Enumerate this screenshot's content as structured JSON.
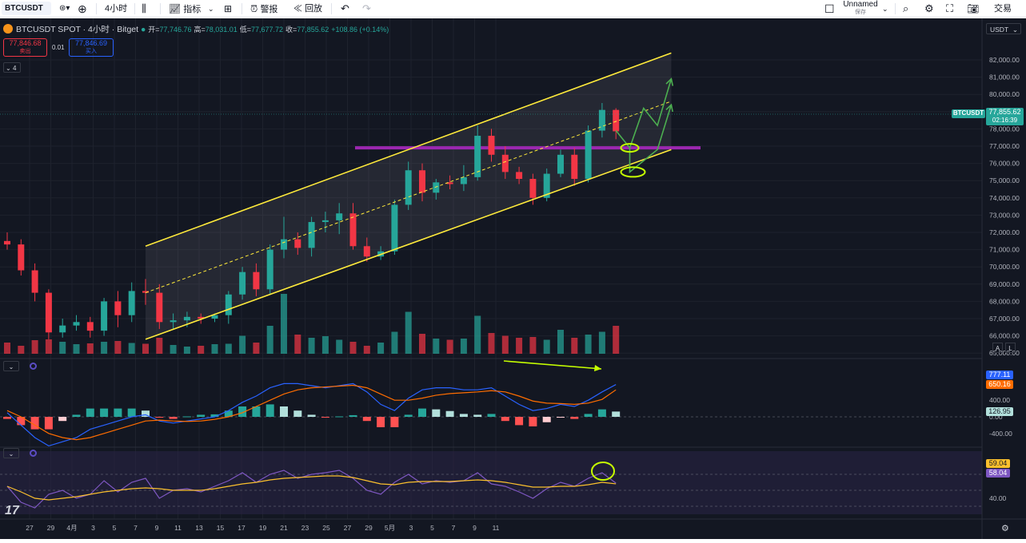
{
  "toolbar": {
    "symbol": "BTCUSDT",
    "interval": "4小时",
    "indicators_label": "指标",
    "alert_label": "警报",
    "replay_label": "回放",
    "layout_name": "Unnamed",
    "save_label": "保存",
    "trade_label": "交易"
  },
  "legend": {
    "title": "BTCUSDT SPOT · 4小时 · Bitget",
    "open_label": "开=",
    "open": "77,746.76",
    "high_label": "高=",
    "high": "78,031.01",
    "low_label": "低=",
    "low": "77,677.72",
    "close_label": "收=",
    "close": "77,855.62",
    "change": "+108.86 (+0.14%)",
    "sell_price": "77,846.68",
    "sell_label": "卖出",
    "spread": "0.01",
    "buy_price": "77,846.69",
    "buy_label": "买入",
    "collapse_count": "4"
  },
  "currency": "USDT",
  "last_price": {
    "symbol": "BTCUSDT",
    "price": "77,855.62",
    "countdown": "02:16:39"
  },
  "macd_values": [
    "777.11",
    "650.16",
    "126.95"
  ],
  "rsi_values": [
    "59.04",
    "58.04"
  ],
  "chart_data": [
    {
      "type": "candlestick",
      "title": "BTCUSDT SPOT · 4小时 · Bitget",
      "ylim": [
        64500,
        82500
      ],
      "y_ticks": [
        "82,000.00",
        "81,000.00",
        "80,000.00",
        "79,000.00",
        "78,000.00",
        "77,000.00",
        "76,000.00",
        "75,000.00",
        "74,000.00",
        "73,000.00",
        "72,000.00",
        "71,000.00",
        "70,000.00",
        "69,000.00",
        "68,000.00",
        "67,000.00",
        "66,000.00",
        "65,000.00"
      ],
      "x_tick_labels": [
        "27",
        "29",
        "4月",
        "3",
        "5",
        "7",
        "9",
        "11",
        "13",
        "15",
        "17",
        "19",
        "21",
        "23",
        "25",
        "27",
        "29",
        "5月",
        "3",
        "5",
        "7",
        "9",
        "11"
      ],
      "candles": [
        {
          "x": "03-26",
          "o": 71500,
          "h": 72000,
          "l": 71000,
          "c": 71300
        },
        {
          "x": "03-27",
          "o": 71300,
          "h": 71600,
          "l": 69500,
          "c": 69800
        },
        {
          "x": "03-28",
          "o": 69800,
          "h": 70200,
          "l": 68000,
          "c": 68500
        },
        {
          "x": "03-29",
          "o": 68500,
          "h": 68700,
          "l": 65800,
          "c": 66200
        },
        {
          "x": "03-30",
          "o": 66200,
          "h": 67000,
          "l": 65900,
          "c": 66600
        },
        {
          "x": "03-31",
          "o": 66600,
          "h": 67200,
          "l": 66300,
          "c": 66800
        },
        {
          "x": "04-01",
          "o": 66800,
          "h": 67100,
          "l": 65900,
          "c": 66300
        },
        {
          "x": "04-02",
          "o": 66300,
          "h": 68200,
          "l": 66000,
          "c": 68000
        },
        {
          "x": "04-03",
          "o": 68000,
          "h": 68600,
          "l": 66500,
          "c": 67200
        },
        {
          "x": "04-04",
          "o": 67200,
          "h": 69100,
          "l": 66800,
          "c": 68600
        },
        {
          "x": "04-05",
          "o": 68600,
          "h": 69300,
          "l": 67800,
          "c": 68500
        },
        {
          "x": "04-06",
          "o": 68500,
          "h": 69000,
          "l": 66400,
          "c": 66800
        },
        {
          "x": "04-07",
          "o": 66800,
          "h": 67300,
          "l": 66400,
          "c": 66900
        },
        {
          "x": "04-08",
          "o": 66900,
          "h": 67400,
          "l": 66500,
          "c": 67100
        },
        {
          "x": "04-09",
          "o": 67100,
          "h": 67300,
          "l": 66700,
          "c": 67000
        },
        {
          "x": "04-10",
          "o": 67000,
          "h": 67300,
          "l": 66800,
          "c": 67200
        },
        {
          "x": "04-11",
          "o": 67200,
          "h": 68600,
          "l": 66700,
          "c": 68400
        },
        {
          "x": "04-12",
          "o": 68400,
          "h": 70000,
          "l": 68100,
          "c": 69700
        },
        {
          "x": "04-13",
          "o": 69700,
          "h": 70200,
          "l": 68300,
          "c": 68700
        },
        {
          "x": "04-14",
          "o": 68700,
          "h": 71300,
          "l": 68400,
          "c": 71000
        },
        {
          "x": "04-15",
          "o": 71000,
          "h": 72900,
          "l": 70500,
          "c": 71600
        },
        {
          "x": "04-16",
          "o": 71600,
          "h": 72000,
          "l": 70700,
          "c": 71100
        },
        {
          "x": "04-17",
          "o": 71100,
          "h": 72900,
          "l": 70600,
          "c": 72600
        },
        {
          "x": "04-18",
          "o": 72600,
          "h": 73200,
          "l": 72000,
          "c": 72700
        },
        {
          "x": "04-19",
          "o": 72700,
          "h": 73700,
          "l": 71900,
          "c": 73100
        },
        {
          "x": "04-20",
          "o": 73100,
          "h": 73700,
          "l": 71000,
          "c": 71200
        },
        {
          "x": "04-21",
          "o": 71200,
          "h": 71700,
          "l": 70300,
          "c": 70600
        },
        {
          "x": "04-22",
          "o": 70600,
          "h": 71200,
          "l": 70400,
          "c": 70900
        },
        {
          "x": "04-23",
          "o": 70900,
          "h": 73900,
          "l": 70700,
          "c": 73600
        },
        {
          "x": "04-24",
          "o": 73600,
          "h": 76100,
          "l": 73300,
          "c": 75600
        },
        {
          "x": "04-25",
          "o": 75600,
          "h": 76000,
          "l": 73800,
          "c": 74300
        },
        {
          "x": "04-26",
          "o": 74300,
          "h": 75100,
          "l": 73900,
          "c": 74900
        },
        {
          "x": "04-27",
          "o": 74900,
          "h": 75300,
          "l": 74500,
          "c": 74800
        },
        {
          "x": "04-28",
          "o": 74800,
          "h": 75900,
          "l": 74400,
          "c": 75200
        },
        {
          "x": "04-29",
          "o": 75200,
          "h": 78200,
          "l": 75000,
          "c": 77600
        },
        {
          "x": "04-30",
          "o": 77600,
          "h": 78000,
          "l": 76100,
          "c": 76500
        },
        {
          "x": "05-01",
          "o": 76500,
          "h": 77000,
          "l": 75100,
          "c": 75500
        },
        {
          "x": "05-02",
          "o": 75500,
          "h": 75800,
          "l": 74800,
          "c": 75100
        },
        {
          "x": "05-03",
          "o": 75100,
          "h": 75400,
          "l": 73600,
          "c": 74000
        },
        {
          "x": "05-04",
          "o": 74000,
          "h": 75700,
          "l": 73800,
          "c": 75400
        },
        {
          "x": "05-05",
          "o": 75400,
          "h": 76800,
          "l": 75200,
          "c": 76500
        },
        {
          "x": "05-06",
          "o": 76500,
          "h": 76900,
          "l": 74700,
          "c": 75100
        },
        {
          "x": "05-07",
          "o": 75100,
          "h": 78200,
          "l": 74900,
          "c": 77900
        },
        {
          "x": "05-08",
          "o": 77900,
          "h": 79500,
          "l": 77500,
          "c": 79100
        },
        {
          "x": "05-09",
          "o": 79100,
          "h": 79200,
          "l": 77400,
          "c": 77860
        }
      ],
      "channel": {
        "upper": [
          {
            "x": "04-05",
            "y": 71200
          },
          {
            "x": "05-13",
            "y": 82400
          }
        ],
        "lower": [
          {
            "x": "04-05",
            "y": 65800
          },
          {
            "x": "05-13",
            "y": 76800
          }
        ]
      },
      "resistance_level": 76900,
      "projections": [
        [
          {
            "x": "05-09",
            "y": 77900
          },
          {
            "x": "05-10",
            "y": 76900
          },
          {
            "x": "05-11",
            "y": 79200
          },
          {
            "x": "05-12",
            "y": 78200
          },
          {
            "x": "05-13",
            "y": 80900
          }
        ],
        [
          {
            "x": "05-10",
            "y": 76900
          },
          {
            "x": "05-10",
            "y": 75500
          },
          {
            "x": "05-12",
            "y": 76800
          },
          {
            "x": "05-13",
            "y": 79400
          }
        ]
      ]
    },
    {
      "type": "bar",
      "title": "",
      "values": [
        28,
        20,
        34,
        36,
        30,
        24,
        26,
        30,
        32,
        27,
        25,
        40,
        22,
        18,
        20,
        24,
        25,
        45,
        28,
        70,
        150,
        48,
        40,
        44,
        35,
        30,
        20,
        28,
        55,
        105,
        50,
        38,
        35,
        38,
        95,
        52,
        45,
        40,
        42,
        35,
        60,
        40,
        48,
        55,
        70
      ]
    },
    {
      "type": "line",
      "title": "",
      "y_ticks": [
        "400.00",
        "0.00",
        "-400.00"
      ],
      "series": [
        {
          "values": [
            100,
            -200,
            -500,
            -700,
            -600,
            -500,
            -300,
            -200,
            -100,
            0,
            50,
            -100,
            -150,
            -100,
            -50,
            0,
            150,
            350,
            500,
            700,
            800,
            800,
            750,
            700,
            750,
            800,
            600,
            300,
            150,
            450,
            650,
            700,
            700,
            650,
            650,
            700,
            500,
            300,
            150,
            200,
            300,
            250,
            400,
            600,
            777.11
          ]
        },
        {
          "values": [
            150,
            0,
            -200,
            -400,
            -500,
            -550,
            -500,
            -400,
            -300,
            -200,
            -100,
            -80,
            -100,
            -110,
            -100,
            -60,
            0,
            100,
            250,
            400,
            550,
            650,
            700,
            720,
            740,
            760,
            700,
            550,
            400,
            400,
            450,
            520,
            560,
            580,
            600,
            630,
            600,
            500,
            380,
            330,
            320,
            300,
            330,
            420,
            650.16
          ]
        },
        {
          "values": [
            -50,
            -200,
            -300,
            -300,
            -100,
            50,
            200,
            200,
            200,
            200,
            150,
            -20,
            -50,
            10,
            50,
            60,
            150,
            250,
            250,
            300,
            250,
            150,
            50,
            -20,
            10,
            40,
            -100,
            -250,
            -250,
            50,
            200,
            180,
            140,
            70,
            50,
            70,
            -100,
            -200,
            -230,
            -130,
            -20,
            -50,
            70,
            180,
            126.95
          ]
        }
      ]
    },
    {
      "type": "line",
      "title": "",
      "y_ticks": [
        "40.00"
      ],
      "series": [
        {
          "values": [
            55,
            35,
            28,
            45,
            50,
            40,
            45,
            62,
            48,
            60,
            65,
            40,
            50,
            52,
            48,
            55,
            62,
            72,
            60,
            70,
            75,
            65,
            70,
            72,
            75,
            65,
            50,
            45,
            60,
            70,
            58,
            62,
            60,
            62,
            72,
            58,
            55,
            48,
            40,
            52,
            60,
            55,
            65,
            72,
            59.04
          ]
        },
        {
          "values": [
            55,
            48,
            40,
            38,
            40,
            42,
            45,
            48,
            50,
            52,
            53,
            52,
            50,
            50,
            50,
            52,
            55,
            58,
            60,
            63,
            65,
            66,
            67,
            68,
            68,
            66,
            62,
            58,
            57,
            60,
            61,
            61,
            61,
            62,
            63,
            62,
            60,
            57,
            54,
            54,
            55,
            55,
            57,
            60,
            58.04
          ]
        }
      ]
    }
  ]
}
